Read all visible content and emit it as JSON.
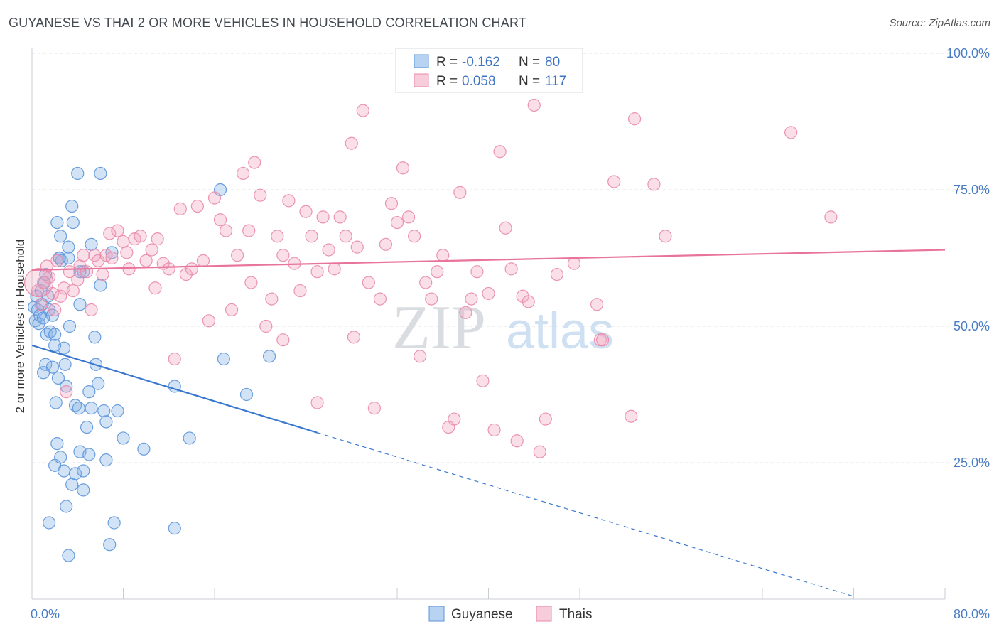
{
  "title": "GUYANESE VS THAI 2 OR MORE VEHICLES IN HOUSEHOLD CORRELATION CHART",
  "source": "Source: ZipAtlas.com",
  "chart_data": {
    "type": "scatter",
    "title": "GUYANESE VS THAI 2 OR MORE VEHICLES IN HOUSEHOLD CORRELATION CHART",
    "xlabel": "",
    "ylabel": "2 or more Vehicles in Household",
    "xlim": [
      0,
      80
    ],
    "ylim": [
      0,
      100
    ],
    "x_tick_labels": [
      "0.0%",
      "80.0%"
    ],
    "y_ticks": [
      25,
      50,
      75,
      100
    ],
    "y_tick_labels": [
      "25.0%",
      "50.0%",
      "75.0%",
      "100.0%"
    ],
    "grid": true,
    "legend_position": "top-center",
    "watermark": "ZIPatlas",
    "colors": {
      "guyanese": "#7eaee6",
      "thais": "#f0a3bd",
      "guyanese_line": "#3a78d0",
      "thais_line": "#e8739b"
    },
    "series": [
      {
        "name": "Guyanese",
        "R": "-0.162",
        "N": "80",
        "trend": {
          "x0": 0,
          "y0": 46.5,
          "x1": 25,
          "y1": 30.5,
          "dash_x1": 72,
          "dash_y1": 0.5
        },
        "points": [
          [
            0.2,
            53.5
          ],
          [
            0.3,
            51
          ],
          [
            0.4,
            55.5
          ],
          [
            0.5,
            53
          ],
          [
            0.6,
            50.5
          ],
          [
            0.7,
            52
          ],
          [
            0.8,
            56.5
          ],
          [
            0.9,
            54
          ],
          [
            1.0,
            51.5
          ],
          [
            1.1,
            58
          ],
          [
            1.2,
            43
          ],
          [
            1.3,
            48.5
          ],
          [
            1.4,
            55.5
          ],
          [
            1.5,
            53
          ],
          [
            1.6,
            49
          ],
          [
            1.8,
            42.5
          ],
          [
            2.0,
            46.5
          ],
          [
            2.1,
            36
          ],
          [
            2.2,
            69
          ],
          [
            2.3,
            40.5
          ],
          [
            2.4,
            62.5
          ],
          [
            2.5,
            66.5
          ],
          [
            2.6,
            62
          ],
          [
            2.8,
            46
          ],
          [
            2.9,
            43
          ],
          [
            3.0,
            39
          ],
          [
            3.2,
            64.5
          ],
          [
            3.3,
            50
          ],
          [
            3.5,
            72
          ],
          [
            3.6,
            69
          ],
          [
            3.8,
            35.5
          ],
          [
            4.0,
            78
          ],
          [
            4.1,
            35
          ],
          [
            4.2,
            54
          ],
          [
            4.5,
            60
          ],
          [
            4.8,
            31.5
          ],
          [
            5.0,
            38
          ],
          [
            5.2,
            65
          ],
          [
            5.5,
            48
          ],
          [
            5.6,
            43
          ],
          [
            5.8,
            39.5
          ],
          [
            6.0,
            57.5
          ],
          [
            6.3,
            34.5
          ],
          [
            6.5,
            25.5
          ],
          [
            6.0,
            78
          ],
          [
            7.0,
            63.5
          ],
          [
            8.0,
            29.5
          ],
          [
            9.8,
            27.5
          ],
          [
            12.5,
            39
          ],
          [
            13.8,
            29.5
          ],
          [
            16.5,
            75
          ],
          [
            16.8,
            44
          ],
          [
            18.8,
            37.5
          ],
          [
            20.8,
            44.5
          ],
          [
            1.5,
            14
          ],
          [
            2.0,
            24.5
          ],
          [
            2.2,
            28.5
          ],
          [
            2.5,
            26
          ],
          [
            2.8,
            23.5
          ],
          [
            3.0,
            17
          ],
          [
            3.2,
            8
          ],
          [
            3.5,
            21
          ],
          [
            3.8,
            23
          ],
          [
            4.2,
            27
          ],
          [
            4.5,
            20
          ],
          [
            5.0,
            26.5
          ],
          [
            1.0,
            41.5
          ],
          [
            1.8,
            52
          ],
          [
            2.4,
            62.5
          ],
          [
            3.2,
            62.5
          ],
          [
            4.5,
            23.5
          ],
          [
            6.5,
            32.5
          ],
          [
            7.2,
            14
          ],
          [
            7.5,
            34.5
          ],
          [
            6.8,
            10
          ],
          [
            12.5,
            13
          ],
          [
            4.2,
            60
          ],
          [
            5.2,
            35
          ],
          [
            2.0,
            48.5
          ],
          [
            1.2,
            59.5
          ]
        ]
      },
      {
        "name": "Thais",
        "R": "0.058",
        "N": "117",
        "trend": {
          "x0": 0,
          "y0": 60.3,
          "x1": 80,
          "y1": 64
        },
        "points": [
          [
            0.5,
            56.5
          ],
          [
            0.8,
            54
          ],
          [
            1.0,
            58
          ],
          [
            1.3,
            61
          ],
          [
            1.5,
            59
          ],
          [
            1.8,
            56
          ],
          [
            2.0,
            53
          ],
          [
            2.2,
            62
          ],
          [
            2.5,
            55.5
          ],
          [
            2.8,
            57
          ],
          [
            3.0,
            38
          ],
          [
            3.3,
            60
          ],
          [
            3.6,
            56.5
          ],
          [
            4.0,
            58.5
          ],
          [
            4.2,
            61
          ],
          [
            4.5,
            63
          ],
          [
            4.8,
            60
          ],
          [
            5.2,
            53
          ],
          [
            5.5,
            63
          ],
          [
            5.8,
            62
          ],
          [
            6.2,
            59.5
          ],
          [
            6.5,
            63
          ],
          [
            6.8,
            67
          ],
          [
            7.0,
            62.5
          ],
          [
            7.5,
            67.5
          ],
          [
            8.0,
            65.5
          ],
          [
            8.3,
            63.5
          ],
          [
            8.5,
            60.5
          ],
          [
            9.0,
            66
          ],
          [
            9.5,
            66.5
          ],
          [
            10.0,
            62
          ],
          [
            10.5,
            64
          ],
          [
            10.8,
            57
          ],
          [
            11.0,
            66
          ],
          [
            11.5,
            61.5
          ],
          [
            12.0,
            60.5
          ],
          [
            12.5,
            44
          ],
          [
            13.0,
            71.5
          ],
          [
            13.5,
            59.5
          ],
          [
            14.0,
            60.5
          ],
          [
            14.5,
            72
          ],
          [
            15.0,
            62
          ],
          [
            15.5,
            51
          ],
          [
            16.0,
            73.5
          ],
          [
            16.5,
            69.5
          ],
          [
            17.0,
            67.5
          ],
          [
            17.5,
            53
          ],
          [
            18.0,
            63
          ],
          [
            18.5,
            78
          ],
          [
            19.0,
            67.5
          ],
          [
            19.2,
            58
          ],
          [
            19.5,
            80
          ],
          [
            20.0,
            74
          ],
          [
            20.5,
            50
          ],
          [
            21.0,
            55
          ],
          [
            21.5,
            66.5
          ],
          [
            22.0,
            63
          ],
          [
            22.5,
            73
          ],
          [
            23.0,
            61.5
          ],
          [
            23.5,
            56.5
          ],
          [
            24.0,
            71
          ],
          [
            24.5,
            66.5
          ],
          [
            25.0,
            60
          ],
          [
            25.5,
            70
          ],
          [
            26.0,
            64
          ],
          [
            26.5,
            60.5
          ],
          [
            27.0,
            70
          ],
          [
            27.5,
            66.5
          ],
          [
            28.0,
            83.5
          ],
          [
            28.2,
            48
          ],
          [
            28.5,
            64.5
          ],
          [
            29.0,
            89.5
          ],
          [
            29.5,
            58
          ],
          [
            30.0,
            35
          ],
          [
            30.5,
            55
          ],
          [
            31.0,
            65
          ],
          [
            31.5,
            72.5
          ],
          [
            32.0,
            69
          ],
          [
            32.5,
            79
          ],
          [
            33.0,
            70
          ],
          [
            33.5,
            66.5
          ],
          [
            34.0,
            44.5
          ],
          [
            34.5,
            58
          ],
          [
            35.0,
            55
          ],
          [
            35.5,
            60
          ],
          [
            36.0,
            63
          ],
          [
            36.5,
            31.5
          ],
          [
            37.0,
            33
          ],
          [
            37.5,
            74.5
          ],
          [
            38.0,
            52.5
          ],
          [
            38.5,
            55
          ],
          [
            39.0,
            60
          ],
          [
            39.5,
            40
          ],
          [
            40.0,
            56
          ],
          [
            40.5,
            31
          ],
          [
            41.0,
            82
          ],
          [
            41.5,
            68
          ],
          [
            42.0,
            60.5
          ],
          [
            42.5,
            29
          ],
          [
            43.0,
            55.5
          ],
          [
            43.5,
            54.5
          ],
          [
            44.0,
            90.5
          ],
          [
            44.5,
            27
          ],
          [
            45.0,
            33
          ],
          [
            46.0,
            59.5
          ],
          [
            47.5,
            61.5
          ],
          [
            49.5,
            54
          ],
          [
            49.8,
            47.5
          ],
          [
            50.0,
            47.5
          ],
          [
            51.0,
            76.5
          ],
          [
            52.5,
            33.5
          ],
          [
            52.8,
            88
          ],
          [
            54.5,
            76
          ],
          [
            55.5,
            66.5
          ],
          [
            66.5,
            85.5
          ],
          [
            70.0,
            70
          ],
          [
            22.0,
            47.5
          ],
          [
            25.0,
            36
          ]
        ]
      }
    ]
  }
}
